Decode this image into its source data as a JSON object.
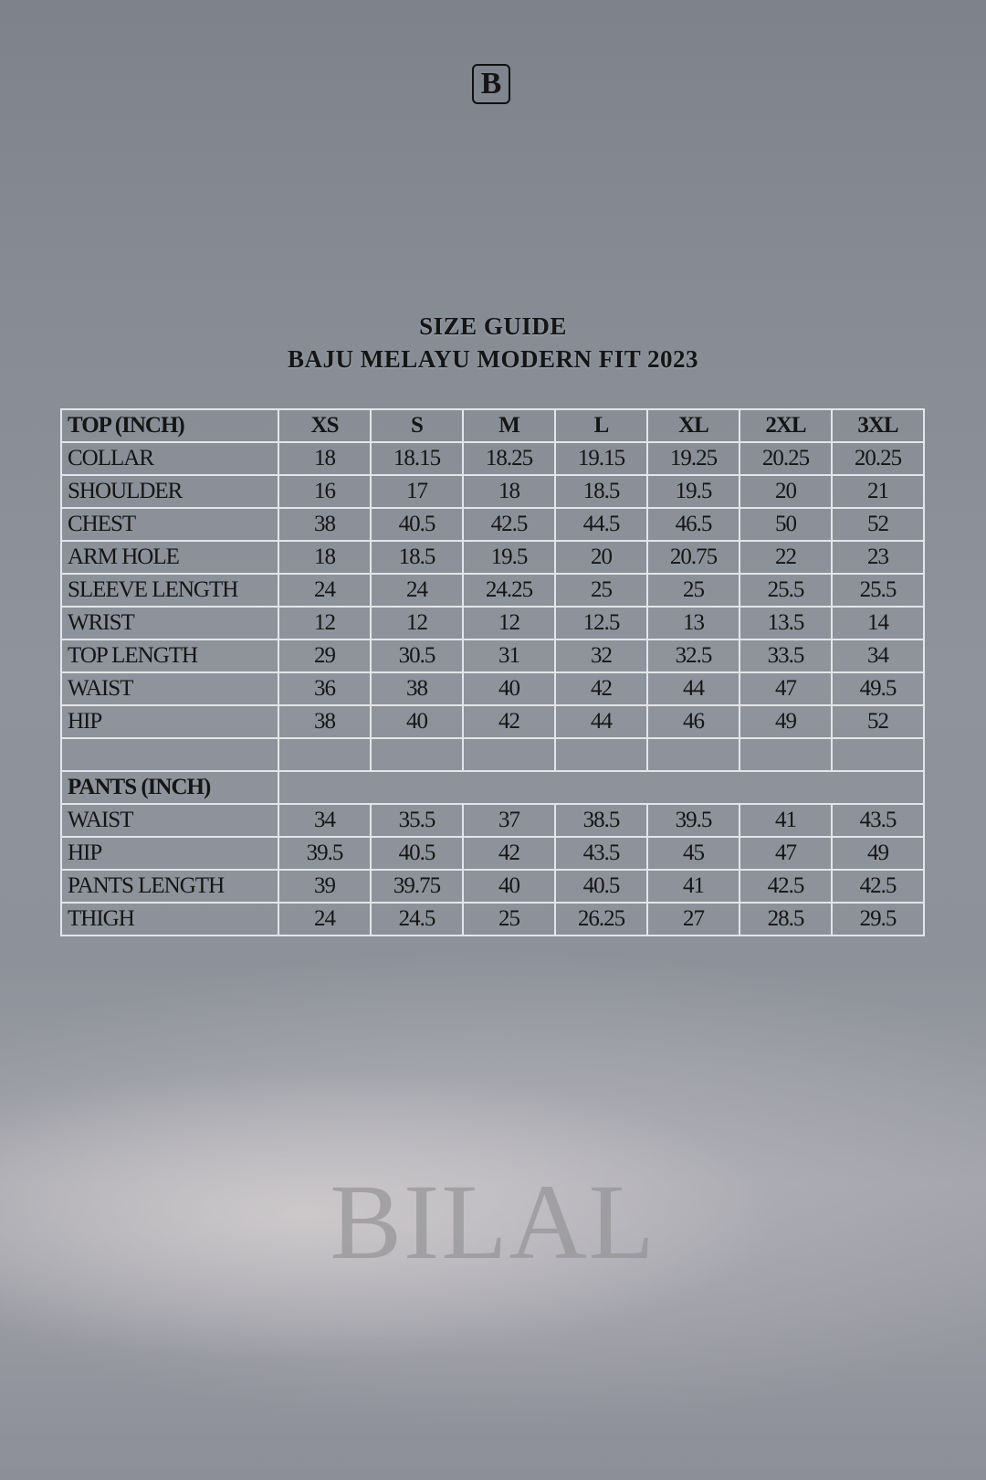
{
  "brand": {
    "logo_letter": "B",
    "watermark": "BILAL"
  },
  "title": {
    "line1": "SIZE GUIDE",
    "line2": "BAJU MELAYU MODERN FIT 2023"
  },
  "top": {
    "header": "TOP (INCH)",
    "sizes": [
      "XS",
      "S",
      "M",
      "L",
      "XL",
      "2XL",
      "3XL"
    ],
    "rows": [
      {
        "label": "COLLAR",
        "values": [
          "18",
          "18.15",
          "18.25",
          "19.15",
          "19.25",
          "20.25",
          "20.25"
        ]
      },
      {
        "label": "SHOULDER",
        "values": [
          "16",
          "17",
          "18",
          "18.5",
          "19.5",
          "20",
          "21"
        ]
      },
      {
        "label": "CHEST",
        "values": [
          "38",
          "40.5",
          "42.5",
          "44.5",
          "46.5",
          "50",
          "52"
        ]
      },
      {
        "label": "ARM HOLE",
        "values": [
          "18",
          "18.5",
          "19.5",
          "20",
          "20.75",
          "22",
          "23"
        ]
      },
      {
        "label": "SLEEVE LENGTH",
        "values": [
          "24",
          "24",
          "24.25",
          "25",
          "25",
          "25.5",
          "25.5"
        ]
      },
      {
        "label": "WRIST",
        "values": [
          "12",
          "12",
          "12",
          "12.5",
          "13",
          "13.5",
          "14"
        ]
      },
      {
        "label": "TOP LENGTH",
        "values": [
          "29",
          "30.5",
          "31",
          "32",
          "32.5",
          "33.5",
          "34"
        ]
      },
      {
        "label": "WAIST",
        "values": [
          "36",
          "38",
          "40",
          "42",
          "44",
          "47",
          "49.5"
        ]
      },
      {
        "label": "HIP",
        "values": [
          "38",
          "40",
          "42",
          "44",
          "46",
          "49",
          "52"
        ]
      }
    ]
  },
  "pants": {
    "header": "PANTS (INCH)",
    "rows": [
      {
        "label": "WAIST",
        "values": [
          "34",
          "35.5",
          "37",
          "38.5",
          "39.5",
          "41",
          "43.5"
        ]
      },
      {
        "label": "HIP",
        "values": [
          "39.5",
          "40.5",
          "42",
          "43.5",
          "45",
          "47",
          "49"
        ]
      },
      {
        "label": "PANTS LENGTH",
        "values": [
          "39",
          "39.75",
          "40",
          "40.5",
          "41",
          "42.5",
          "42.5"
        ]
      },
      {
        "label": "THIGH",
        "values": [
          "24",
          "24.5",
          "25",
          "26.25",
          "27",
          "28.5",
          "29.5"
        ]
      }
    ]
  }
}
